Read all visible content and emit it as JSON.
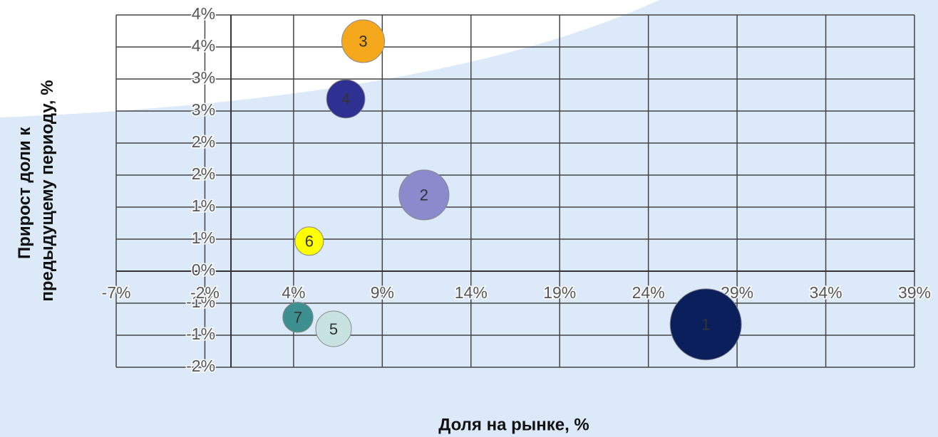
{
  "chart_data": {
    "type": "bubble",
    "xlabel": "Доля на рынке, %",
    "ylabel": [
      "Прирост доли к",
      "предыдущему периоду, %"
    ],
    "xlim": [
      -6.6,
      39.3
    ],
    "xticks": [
      {
        "value": -6.6,
        "label": "-7%"
      },
      {
        "value": -1.5,
        "label": "-2%"
      },
      {
        "value": 3.6,
        "label": "4%"
      },
      {
        "value": 8.7,
        "label": "9%"
      },
      {
        "value": 13.8,
        "label": "14%"
      },
      {
        "value": 18.9,
        "label": "19%"
      },
      {
        "value": 24,
        "label": "24%"
      },
      {
        "value": 29.1,
        "label": "29%"
      },
      {
        "value": 34.2,
        "label": "34%"
      },
      {
        "value": 39.3,
        "label": "39%"
      }
    ],
    "ylim": [
      -1.5,
      4
    ],
    "yticks": [
      {
        "value": -1.5,
        "label": "-2%"
      },
      {
        "value": -1,
        "label": "-1%"
      },
      {
        "value": -0.5,
        "label": "-1%"
      },
      {
        "value": 0,
        "label": "0%"
      },
      {
        "value": 0.5,
        "label": "1%"
      },
      {
        "value": 1,
        "label": "1%"
      },
      {
        "value": 1.5,
        "label": "2%"
      },
      {
        "value": 2,
        "label": "2%"
      },
      {
        "value": 2.5,
        "label": "3%"
      },
      {
        "value": 3,
        "label": "3%"
      },
      {
        "value": 3.5,
        "label": "4%"
      },
      {
        "value": 4,
        "label": "4%"
      }
    ],
    "grid": true,
    "points": {
      "labels": [
        "1",
        "2",
        "3",
        "4",
        "5",
        "6",
        "7"
      ],
      "x": [
        27.3,
        11.1,
        7.6,
        6.6,
        5.9,
        4.5,
        3.85
      ],
      "y": [
        -0.83,
        1.19,
        3.59,
        2.69,
        -0.9,
        0.47,
        -0.72
      ],
      "sizes": [
        100,
        49,
        36,
        29,
        25,
        16,
        18
      ],
      "colors": [
        "#0b1f5c",
        "#8a8acc",
        "#f5a81c",
        "#2e3192",
        "#c8e2e2",
        "#ffff00",
        "#3e8f8f"
      ]
    }
  }
}
